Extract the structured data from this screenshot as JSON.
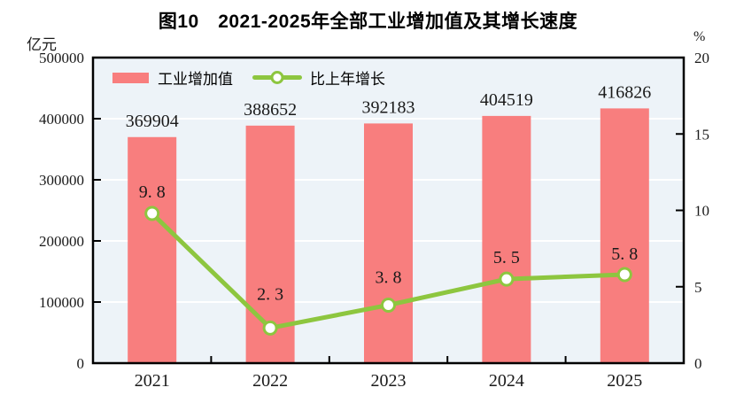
{
  "title": "图10　2021-2025年全部工业增加值及其增长速度",
  "left_axis": {
    "unit": "亿元",
    "ticks": [
      0,
      100000,
      200000,
      300000,
      400000,
      500000
    ]
  },
  "right_axis": {
    "unit": "%",
    "ticks": [
      0,
      5,
      10,
      15,
      20
    ]
  },
  "legend": [
    {
      "label": "工业增加值",
      "marker": "bar-swatch",
      "color": "#F87E7E"
    },
    {
      "label": "比上年增长",
      "marker": "line-dot",
      "color": "#8DC63F"
    }
  ],
  "chart_data": {
    "type": "bar+line",
    "categories": [
      "2021",
      "2022",
      "2023",
      "2024",
      "2025"
    ],
    "series": [
      {
        "name": "工业增加值",
        "type": "bar",
        "axis": "left",
        "unit": "亿元",
        "color": "#F87E7E",
        "values": [
          369904,
          388652,
          392183,
          404519,
          416826
        ]
      },
      {
        "name": "比上年增长",
        "type": "line",
        "axis": "right",
        "unit": "%",
        "color": "#8DC63F",
        "values": [
          9.8,
          2.3,
          3.8,
          5.5,
          5.8
        ]
      }
    ],
    "title": "图10　2021-2025年全部工业增加值及其增长速度",
    "xlabel": "",
    "ylabel_left": "亿元",
    "ylabel_right": "%",
    "left_ylim": [
      0,
      500000
    ],
    "right_ylim": [
      0,
      20
    ],
    "grid": true,
    "grid_color": "#ffffff",
    "plot_bg": "#EDF3F8",
    "legend_position": "top-left-inside",
    "data_labels": true
  }
}
